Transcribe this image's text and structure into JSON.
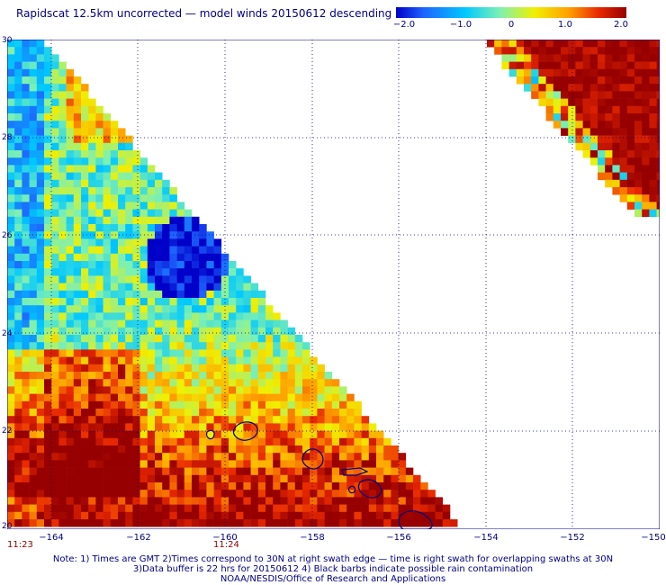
{
  "title": "Rapidscat 12.5km uncorrected — model winds 20150612 descending",
  "colorbar": {
    "ticks": [
      "−2.0",
      "−1.0",
      "0",
      "1.0",
      "2.0"
    ],
    "range": [
      -2.0,
      2.0
    ]
  },
  "map": {
    "lon_ticks": [
      "−164",
      "−162",
      "−160",
      "−158",
      "−156",
      "−154",
      "−152",
      "−150"
    ],
    "lat_ticks": [
      "30",
      "28",
      "26",
      "24",
      "22",
      "20"
    ],
    "lon_range": [
      -165,
      -150
    ],
    "lat_range": [
      20,
      30
    ]
  },
  "times": {
    "left": "11:23",
    "middle": "11:24"
  },
  "notes": {
    "line1": "Note: 1) Times are GMT 2)Times correspond to 30N at right swath edge — time is right swath for overlapping swaths at 30N",
    "line2": "3)Data buffer is 22 hrs for 20150612 4) Black barbs indicate possible rain contamination",
    "line3": "NOAA/NESDIS/Office of Research and Applications"
  },
  "colors": {
    "text": "#000080",
    "time_text": "#8b0000",
    "coastline": "#000080",
    "grid": "#000080"
  }
}
